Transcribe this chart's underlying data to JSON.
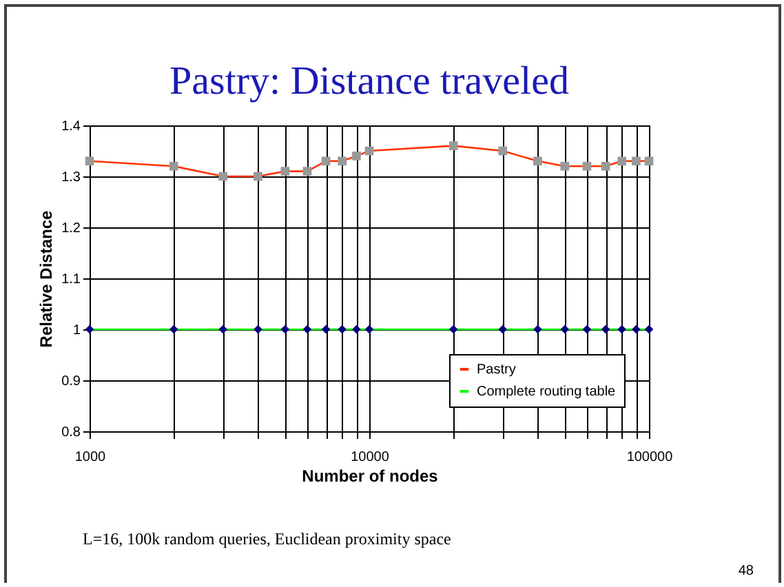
{
  "chart_data": {
    "type": "line",
    "title": "Pastry: Distance traveled",
    "xlabel": "Number of nodes",
    "ylabel": "Relative Distance",
    "x": [
      1000,
      2000,
      3000,
      4000,
      5000,
      6000,
      7000,
      8000,
      9000,
      10000,
      20000,
      30000,
      40000,
      50000,
      60000,
      70000,
      80000,
      90000,
      100000
    ],
    "series": [
      {
        "name": "Pastry",
        "color": "#ff3300",
        "marker": "square",
        "colors": [
          "#999999",
          "#999999",
          "#999999",
          "#999999",
          "#999999",
          "#999999",
          "#999999",
          "#999999",
          "#999999",
          "#999999",
          "#999999",
          "#999999",
          "#999999",
          "#999999",
          "#999999",
          "#999999",
          "#999999",
          "#999999",
          "#999999"
        ],
        "values": [
          1.33,
          1.32,
          1.3,
          1.3,
          1.31,
          1.31,
          1.33,
          1.33,
          1.34,
          1.35,
          1.36,
          1.35,
          1.33,
          1.32,
          1.32,
          1.32,
          1.33,
          1.33,
          1.33
        ]
      },
      {
        "name": "Complete routing table",
        "color": "#00ff00",
        "marker": "diamond",
        "colors": [
          "#000080",
          "#000080",
          "#000080",
          "#000080",
          "#000080",
          "#000080",
          "#000080",
          "#000080",
          "#000080",
          "#000080",
          "#000080",
          "#000080",
          "#000080",
          "#000080",
          "#000080",
          "#000080",
          "#000080",
          "#000080",
          "#000080"
        ],
        "values": [
          1,
          1,
          1,
          1,
          1,
          1,
          1,
          1,
          1,
          1,
          1,
          1,
          1,
          1,
          1,
          1,
          1,
          1,
          1
        ]
      }
    ],
    "log": "x",
    "xlim": [
      1000,
      100000
    ],
    "xticks": [
      1000,
      {
        "value": 2000,
        "label": null
      },
      {
        "value": 3000,
        "label": null
      },
      {
        "value": 4000,
        "label": null
      },
      {
        "value": 5000,
        "label": null
      },
      {
        "value": 6000,
        "label": null
      },
      {
        "value": 7000,
        "label": null
      },
      {
        "value": 8000,
        "label": null
      },
      {
        "value": 9000,
        "label": null
      },
      10000,
      {
        "value": 20000,
        "label": null
      },
      {
        "value": 30000,
        "label": null
      },
      {
        "value": 40000,
        "label": null
      },
      {
        "value": 50000,
        "label": null
      },
      {
        "value": 60000,
        "label": null
      },
      {
        "value": 70000,
        "label": null
      },
      {
        "value": 80000,
        "label": null
      },
      {
        "value": 90000,
        "label": null
      },
      100000
    ],
    "ylim": [
      0.8,
      1.4
    ],
    "yticks": [
      0.8,
      0.9,
      1,
      1.1,
      1.2,
      1.3,
      1.4
    ],
    "grid": true,
    "legend": "bottom right",
    "annotations": [
      "L=16, 100k random queries, Euclidean proximity space",
      "48"
    ]
  }
}
